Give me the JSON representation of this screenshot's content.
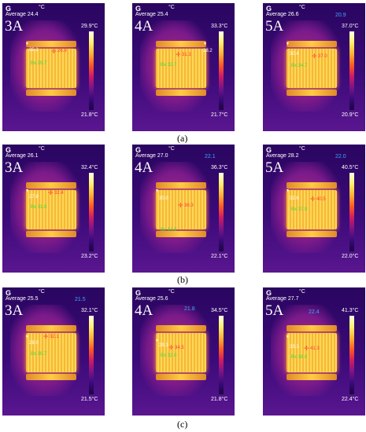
{
  "panels": [
    {
      "g": "G",
      "unit": "°C",
      "avg": "Average 24.4",
      "corner": "",
      "amp": "3A",
      "max": "29.9°C",
      "min": "21.8°C",
      "a": "25.2",
      "b": "26.9",
      "c": "",
      "box": "Bx 29.7"
    },
    {
      "g": "G",
      "unit": "°C",
      "avg": "Average 25.4",
      "corner": "",
      "amp": "4A",
      "max": "33.3°C",
      "min": "21.7°C",
      "a": "",
      "b": "31.3",
      "c": "28.2",
      "box": "Bx 32.7"
    },
    {
      "g": "G",
      "unit": "°C",
      "avg": "Average 26.6",
      "corner": "20.9",
      "amp": "5A",
      "max": "37.0°C",
      "min": "20.9°C",
      "a": "30.4",
      "b": "37.0",
      "c": "",
      "box": "Bx 34.7"
    },
    {
      "g": "G",
      "unit": "°C",
      "avg": "Average 26.1",
      "corner": "",
      "amp": "3A",
      "max": "32.4°C",
      "min": "23.2°C",
      "a": "27.9",
      "b": "32.4",
      "c": "",
      "box": "Bx 31.8"
    },
    {
      "g": "G",
      "unit": "°C",
      "avg": "Average 27.0",
      "corner": "22.1",
      "amp": "4A",
      "max": "36.3°C",
      "min": "22.1°C",
      "a": "30.0",
      "b": "36.3",
      "c": "",
      "box": "Bx 34.3"
    },
    {
      "g": "G",
      "unit": "°C",
      "avg": "Average 28.2",
      "corner": "22.0",
      "amp": "5A",
      "max": "40.5°C",
      "min": "22.0°C",
      "a": "32.6",
      "b": "40.5",
      "c": "",
      "box": "Bx 37.9"
    },
    {
      "g": "G",
      "unit": "°C",
      "avg": "Average 25.5",
      "corner": "21.5",
      "amp": "3A",
      "max": "32.1°C",
      "min": "21.5°C",
      "a": "28.0",
      "b": "32.1",
      "c": "",
      "box": "Bx 30.7"
    },
    {
      "g": "G",
      "unit": "°C",
      "avg": "Average 25.6",
      "corner": "21.8",
      "amp": "4A",
      "max": "34.5°C",
      "min": "21.8°C",
      "a": "29.3",
      "b": "34.5",
      "c": "",
      "box": "Bx 32.0"
    },
    {
      "g": "G",
      "unit": "°C",
      "avg": "Average 27.7",
      "corner": "22.4",
      "amp": "5A",
      "max": "41.3°C",
      "min": "22.4°C",
      "a": "33.3",
      "b": "41.3",
      "c": "",
      "box": "Bx 38.0"
    }
  ],
  "captions": {
    "a": "(a)",
    "b": "(b)",
    "c": "(c)"
  },
  "colors": {
    "background_low": "#3a0a78",
    "hot": "#ffd755",
    "max_marker": "#ff3b3b",
    "box_label": "#3fdc3f",
    "min_marker": "#3aa7ff"
  }
}
